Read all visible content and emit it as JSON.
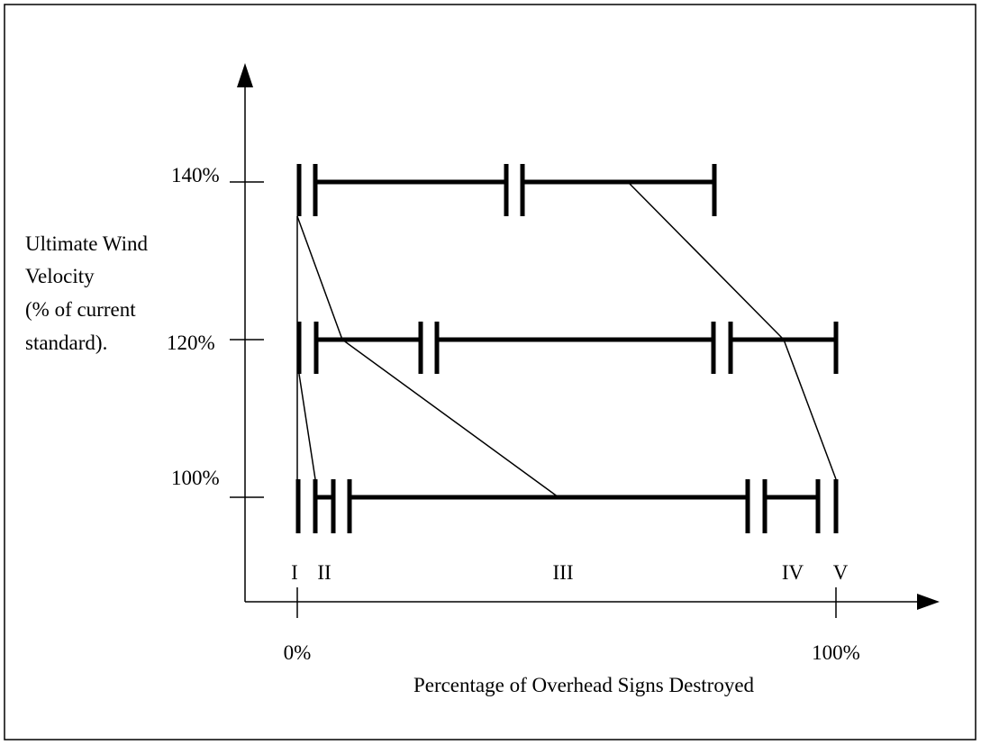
{
  "axis_labels": {
    "y": [
      "Ultimate Wind",
      "Velocity",
      "(% of current",
      "standard)."
    ],
    "x": "Percentage of Overhead Signs Destroyed"
  },
  "y_ticks": [
    "140%",
    "120%",
    "100%"
  ],
  "x_ticks": [
    "0%",
    "100%"
  ],
  "zones": [
    "I",
    "II",
    "III",
    "IV",
    "V"
  ]
}
